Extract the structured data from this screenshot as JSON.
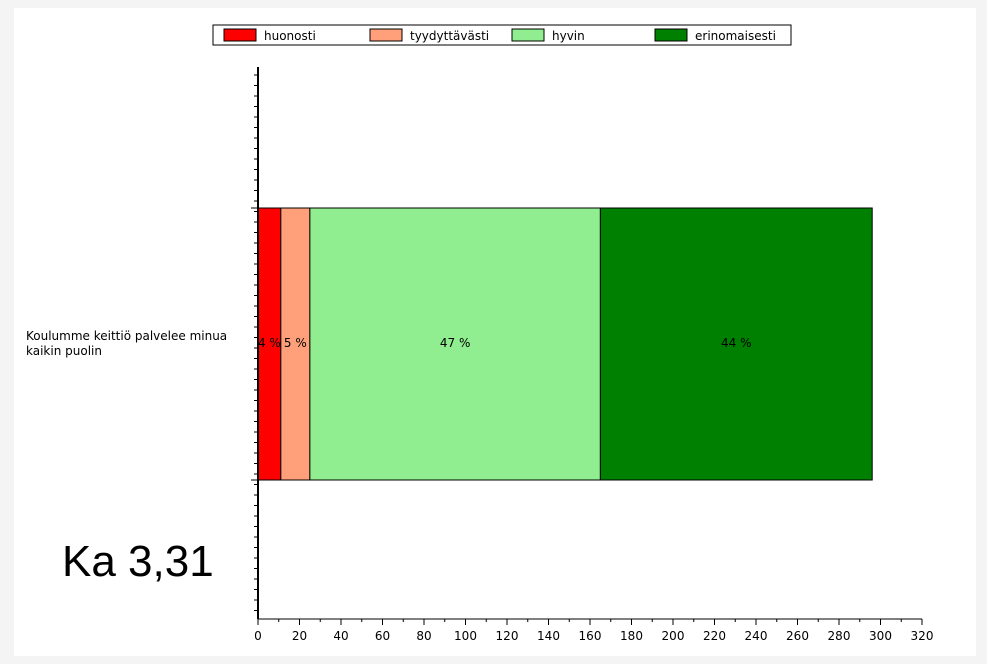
{
  "chart_data": {
    "type": "bar",
    "orientation": "horizontal",
    "stacked": true,
    "categories": [
      "Koulumme keittiö palvelee minua kaikin puolin"
    ],
    "series": [
      {
        "name": "huonosti",
        "values": [
          11
        ],
        "label": "4 %",
        "color": "#ff0000"
      },
      {
        "name": "tyydyttävästi",
        "values": [
          14
        ],
        "label": "5 %",
        "color": "#ffa07a"
      },
      {
        "name": "hyvin",
        "values": [
          140
        ],
        "label": "47 %",
        "color": "#90ee90"
      },
      {
        "name": "erinomaisesti",
        "values": [
          131
        ],
        "label": "44 %",
        "color": "#008000"
      }
    ],
    "xlim": [
      0,
      320
    ],
    "xticks": [
      0,
      20,
      40,
      60,
      80,
      100,
      120,
      140,
      160,
      180,
      200,
      220,
      240,
      260,
      280,
      300,
      320
    ],
    "legend_position": "top",
    "grid": false
  },
  "average_text": "Ka 3,31"
}
